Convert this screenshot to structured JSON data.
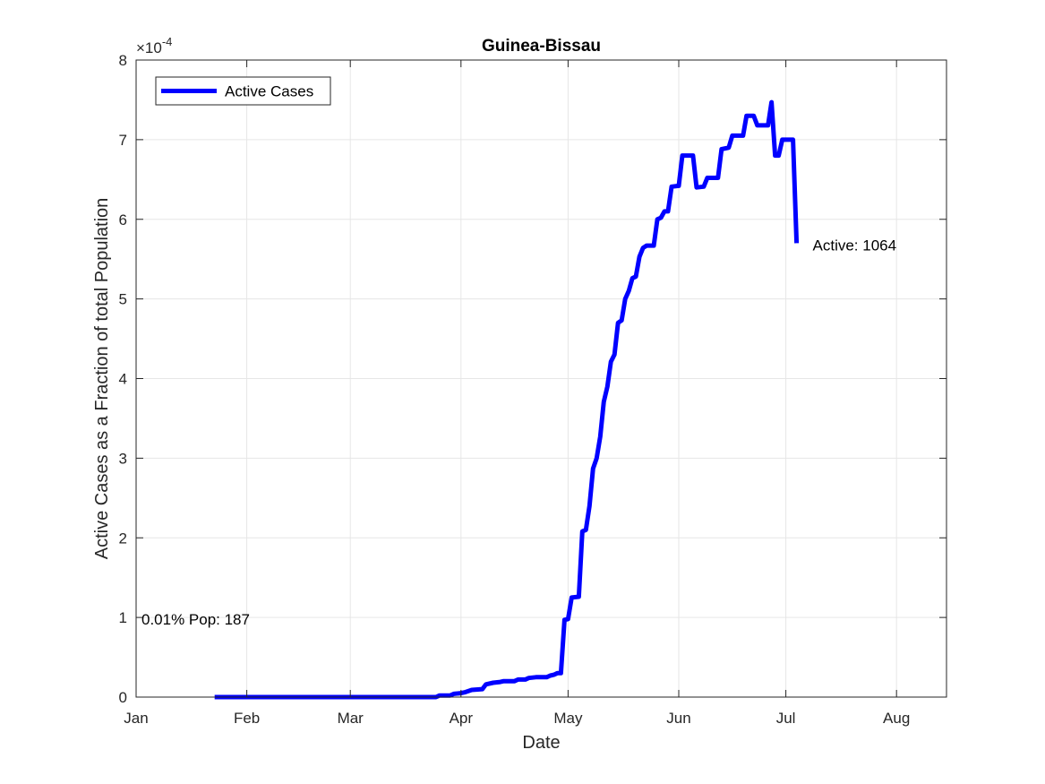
{
  "chart_data": {
    "type": "line",
    "title": "Guinea-Bissau",
    "xlabel": "Date",
    "ylabel": "Active Cases as a Fraction of total Population",
    "y_exponent_label": "×10",
    "y_exponent_value": "-4",
    "xlim": [
      "2020-01-01",
      "2020-08-15"
    ],
    "ylim": [
      0,
      8
    ],
    "x_ticks": [
      {
        "date": "2020-01-01",
        "label": "Jan"
      },
      {
        "date": "2020-02-01",
        "label": "Feb"
      },
      {
        "date": "2020-03-01",
        "label": "Mar"
      },
      {
        "date": "2020-04-01",
        "label": "Apr"
      },
      {
        "date": "2020-05-01",
        "label": "May"
      },
      {
        "date": "2020-06-01",
        "label": "Jun"
      },
      {
        "date": "2020-07-01",
        "label": "Jul"
      },
      {
        "date": "2020-08-01",
        "label": "Aug"
      }
    ],
    "y_ticks": [
      0,
      1,
      2,
      3,
      4,
      5,
      6,
      7,
      8
    ],
    "grid": true,
    "legend": {
      "position": "top-left",
      "entries": [
        "Active Cases"
      ]
    },
    "series": [
      {
        "name": "Active Cases",
        "color": "#0000ff",
        "points": [
          [
            "2020-01-23",
            0.0
          ],
          [
            "2020-03-25",
            0.0
          ],
          [
            "2020-03-26",
            0.02
          ],
          [
            "2020-03-29",
            0.02
          ],
          [
            "2020-03-30",
            0.04
          ],
          [
            "2020-04-01",
            0.05
          ],
          [
            "2020-04-02",
            0.06
          ],
          [
            "2020-04-04",
            0.09
          ],
          [
            "2020-04-07",
            0.1
          ],
          [
            "2020-04-08",
            0.16
          ],
          [
            "2020-04-10",
            0.18
          ],
          [
            "2020-04-12",
            0.19
          ],
          [
            "2020-04-13",
            0.2
          ],
          [
            "2020-04-16",
            0.2
          ],
          [
            "2020-04-17",
            0.22
          ],
          [
            "2020-04-19",
            0.22
          ],
          [
            "2020-04-20",
            0.24
          ],
          [
            "2020-04-22",
            0.25
          ],
          [
            "2020-04-25",
            0.25
          ],
          [
            "2020-04-26",
            0.27
          ],
          [
            "2020-04-27",
            0.28
          ],
          [
            "2020-04-28",
            0.3
          ],
          [
            "2020-04-29",
            0.3
          ],
          [
            "2020-04-30",
            0.97
          ],
          [
            "2020-05-01",
            0.98
          ],
          [
            "2020-05-02",
            1.25
          ],
          [
            "2020-05-04",
            1.26
          ],
          [
            "2020-05-05",
            2.08
          ],
          [
            "2020-05-06",
            2.1
          ],
          [
            "2020-05-07",
            2.4
          ],
          [
            "2020-05-08",
            2.87
          ],
          [
            "2020-05-09",
            3.0
          ],
          [
            "2020-05-10",
            3.27
          ],
          [
            "2020-05-11",
            3.71
          ],
          [
            "2020-05-12",
            3.9
          ],
          [
            "2020-05-13",
            4.21
          ],
          [
            "2020-05-14",
            4.3
          ],
          [
            "2020-05-15",
            4.7
          ],
          [
            "2020-05-16",
            4.73
          ],
          [
            "2020-05-17",
            5.0
          ],
          [
            "2020-05-18",
            5.1
          ],
          [
            "2020-05-19",
            5.26
          ],
          [
            "2020-05-20",
            5.28
          ],
          [
            "2020-05-21",
            5.53
          ],
          [
            "2020-05-22",
            5.64
          ],
          [
            "2020-05-23",
            5.67
          ],
          [
            "2020-05-25",
            5.67
          ],
          [
            "2020-05-26",
            6.0
          ],
          [
            "2020-05-27",
            6.02
          ],
          [
            "2020-05-28",
            6.1
          ],
          [
            "2020-05-29",
            6.1
          ],
          [
            "2020-05-30",
            6.41
          ],
          [
            "2020-06-01",
            6.42
          ],
          [
            "2020-06-02",
            6.8
          ],
          [
            "2020-06-05",
            6.8
          ],
          [
            "2020-06-06",
            6.4
          ],
          [
            "2020-06-08",
            6.41
          ],
          [
            "2020-06-09",
            6.52
          ],
          [
            "2020-06-12",
            6.52
          ],
          [
            "2020-06-13",
            6.88
          ],
          [
            "2020-06-15",
            6.9
          ],
          [
            "2020-06-16",
            7.05
          ],
          [
            "2020-06-19",
            7.05
          ],
          [
            "2020-06-20",
            7.3
          ],
          [
            "2020-06-22",
            7.3
          ],
          [
            "2020-06-23",
            7.18
          ],
          [
            "2020-06-26",
            7.18
          ],
          [
            "2020-06-27",
            7.47
          ],
          [
            "2020-06-28",
            6.8
          ],
          [
            "2020-06-29",
            6.8
          ],
          [
            "2020-06-30",
            7.0
          ],
          [
            "2020-07-03",
            7.0
          ],
          [
            "2020-07-04",
            5.7
          ]
        ]
      }
    ],
    "annotations": [
      {
        "text": "Active: 1064",
        "date": "2020-07-06",
        "y": 5.7
      },
      {
        "text": "0.01% Pop: 187",
        "date": "2020-01-02",
        "y": 1.0
      }
    ]
  }
}
